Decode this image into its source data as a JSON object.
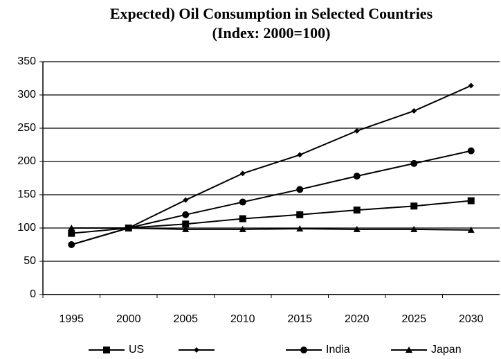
{
  "chart_data": {
    "type": "line",
    "title": "Expected) Oil Consumption in Selected Countries",
    "subtitle": "(Index: 2000=100)",
    "categories": [
      "1995",
      "2000",
      "2005",
      "2010",
      "2015",
      "2020",
      "2025",
      "2030"
    ],
    "series": [
      {
        "name": "US",
        "color": "#000000",
        "marker": "square",
        "values": [
          92,
          100,
          106,
          114,
          120,
          127,
          133,
          141
        ]
      },
      {
        "name": null,
        "color": "#000000",
        "marker": "diamond",
        "values": [
          75,
          100,
          142,
          182,
          210,
          246,
          276,
          314
        ]
      },
      {
        "name": "India",
        "color": "#000000",
        "marker": "circle",
        "values": [
          75,
          100,
          120,
          139,
          158,
          178,
          197,
          216
        ]
      },
      {
        "name": "Japan",
        "color": "#000000",
        "marker": "triangle",
        "values": [
          100,
          100,
          98,
          98,
          99,
          98,
          98,
          97
        ]
      }
    ],
    "ylim": [
      0,
      350
    ],
    "yticks": [
      0,
      50,
      100,
      150,
      200,
      250,
      300,
      350
    ],
    "grid": true
  }
}
